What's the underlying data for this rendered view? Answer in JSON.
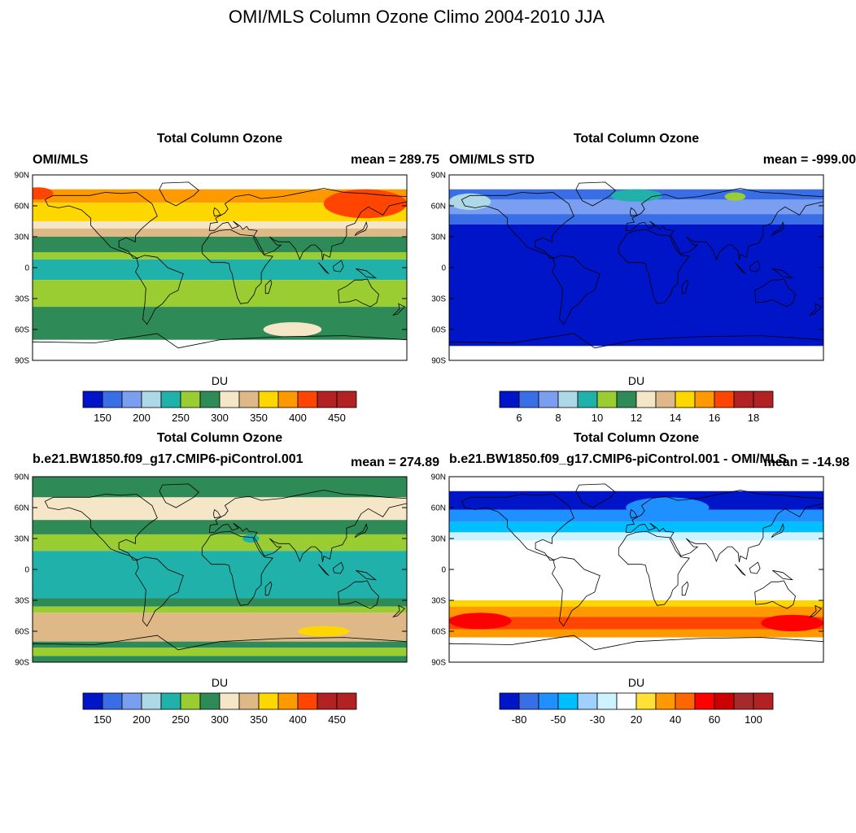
{
  "figure_title": "OMI/MLS Column Ozone Climo 2004-2010 JJA",
  "chart_data": [
    {
      "type": "heatmap",
      "title": "Total Column Ozone",
      "left_label": "OMI/MLS",
      "right_label": "mean = 289.75",
      "colorbar_title": "DU",
      "colorbar_ticks": [
        "150",
        "200",
        "250",
        "300",
        "350",
        "400",
        "450"
      ],
      "lat_ticks": [
        "90N",
        "60N",
        "30N",
        "0",
        "30S",
        "60S",
        "90S"
      ],
      "bands": [
        {
          "lat_from": 76,
          "lat_to": 63,
          "color": "#ff9900"
        },
        {
          "lat_from": 63,
          "lat_to": 45,
          "color": "#ffd700"
        },
        {
          "lat_from": 45,
          "lat_to": 38,
          "color": "#f5e6c8"
        },
        {
          "lat_from": 38,
          "lat_to": 30,
          "color": "#deb887"
        },
        {
          "lat_from": 30,
          "lat_to": 15,
          "color": "#2e8b57"
        },
        {
          "lat_from": 15,
          "lat_to": 8,
          "color": "#9acd32"
        },
        {
          "lat_from": 8,
          "lat_to": -12,
          "color": "#20b2aa"
        },
        {
          "lat_from": -12,
          "lat_to": -38,
          "color": "#9acd32"
        },
        {
          "lat_from": -38,
          "lat_to": -70,
          "color": "#2e8b57"
        }
      ],
      "blobs": [
        {
          "lon": 140,
          "lat": 62,
          "rlon": 40,
          "rlat": 14,
          "color": "#ff4500"
        },
        {
          "lon": -175,
          "lat": 72,
          "rlon": 15,
          "rlat": 6,
          "color": "#ff4500"
        },
        {
          "lon": 70,
          "lat": -60,
          "rlon": 28,
          "rlat": 7,
          "color": "#f5e6c8"
        }
      ]
    },
    {
      "type": "heatmap",
      "title": "Total Column Ozone",
      "left_label": "OMI/MLS STD",
      "right_label": "mean = -999.00",
      "colorbar_title": "DU",
      "colorbar_ticks": [
        "6",
        "8",
        "10",
        "12",
        "14",
        "16",
        "18"
      ],
      "lat_ticks": [
        "90N",
        "60N",
        "30N",
        "0",
        "30S",
        "60S",
        "90S"
      ],
      "bands": [
        {
          "lat_from": 76,
          "lat_to": 66,
          "color": "#3a6ee6"
        },
        {
          "lat_from": 66,
          "lat_to": 52,
          "color": "#7b9ff0"
        },
        {
          "lat_from": 52,
          "lat_to": 42,
          "color": "#3a6ee6"
        },
        {
          "lat_from": 42,
          "lat_to": -76,
          "color": "#0014c8"
        }
      ],
      "blobs": [
        {
          "lon": 0,
          "lat": 70,
          "rlon": 25,
          "rlat": 6,
          "color": "#20b2aa"
        },
        {
          "lon": 95,
          "lat": 69,
          "rlon": 10,
          "rlat": 4,
          "color": "#9acd32"
        },
        {
          "lon": -160,
          "lat": 64,
          "rlon": 20,
          "rlat": 8,
          "color": "#add8e6"
        }
      ]
    },
    {
      "type": "heatmap",
      "title": "Total Column Ozone",
      "left_label": "b.e21.BW1850.f09_g17.CMIP6-piControl.001",
      "right_label": "mean = 274.89",
      "colorbar_title": "DU",
      "colorbar_ticks": [
        "150",
        "200",
        "250",
        "300",
        "350",
        "400",
        "450"
      ],
      "lat_ticks": [
        "90N",
        "60N",
        "30N",
        "0",
        "30S",
        "60S",
        "90S"
      ],
      "bands": [
        {
          "lat_from": 90,
          "lat_to": 70,
          "color": "#2e8b57"
        },
        {
          "lat_from": 70,
          "lat_to": 48,
          "color": "#f5e6c8"
        },
        {
          "lat_from": 48,
          "lat_to": 34,
          "color": "#2e8b57"
        },
        {
          "lat_from": 34,
          "lat_to": 18,
          "color": "#9acd32"
        },
        {
          "lat_from": 18,
          "lat_to": -28,
          "color": "#20b2aa"
        },
        {
          "lat_from": -28,
          "lat_to": -36,
          "color": "#2e8b57"
        },
        {
          "lat_from": -36,
          "lat_to": -42,
          "color": "#9acd32"
        },
        {
          "lat_from": -42,
          "lat_to": -70,
          "color": "#deb887"
        },
        {
          "lat_from": -70,
          "lat_to": -76,
          "color": "#2e8b57"
        },
        {
          "lat_from": -76,
          "lat_to": -84,
          "color": "#9acd32"
        },
        {
          "lat_from": -84,
          "lat_to": -90,
          "color": "#2e8b57"
        }
      ],
      "blobs": [
        {
          "lon": 100,
          "lat": -60,
          "rlon": 25,
          "rlat": 5,
          "color": "#ffd700"
        },
        {
          "lon": 30,
          "lat": 30,
          "rlon": 8,
          "rlat": 4,
          "color": "#20b2aa"
        }
      ]
    },
    {
      "type": "heatmap",
      "title": "Total Column Ozone",
      "left_label": "b.e21.BW1850.f09_g17.CMIP6-piControl.001 - OMI/MLS",
      "right_label": "mean = -14.98",
      "colorbar_title": "DU",
      "colorbar_ticks": [
        "-80",
        "-50",
        "-30",
        "20",
        "40",
        "60",
        "100"
      ],
      "lat_ticks": [
        "90N",
        "60N",
        "30N",
        "0",
        "30S",
        "60S",
        "90S"
      ],
      "bands": [
        {
          "lat_from": 76,
          "lat_to": 58,
          "color": "#0014c8"
        },
        {
          "lat_from": 58,
          "lat_to": 46,
          "color": "#1e90ff"
        },
        {
          "lat_from": 46,
          "lat_to": 36,
          "color": "#00bfff"
        },
        {
          "lat_from": 36,
          "lat_to": 28,
          "color": "#cdf3ff"
        },
        {
          "lat_from": 28,
          "lat_to": -30,
          "color": "#ffffff"
        },
        {
          "lat_from": -30,
          "lat_to": -36,
          "color": "#ffd700"
        },
        {
          "lat_from": -36,
          "lat_to": -46,
          "color": "#ff9900"
        },
        {
          "lat_from": -46,
          "lat_to": -58,
          "color": "#ff4500"
        },
        {
          "lat_from": -58,
          "lat_to": -66,
          "color": "#ff9900"
        },
        {
          "lat_from": -66,
          "lat_to": -76,
          "color": "#ffffff"
        }
      ],
      "blobs": [
        {
          "lon": -150,
          "lat": -50,
          "rlon": 30,
          "rlat": 8,
          "color": "#ff0000"
        },
        {
          "lon": 150,
          "lat": -52,
          "rlon": 30,
          "rlat": 8,
          "color": "#ff0000"
        },
        {
          "lon": 30,
          "lat": 60,
          "rlon": 40,
          "rlat": 10,
          "color": "#1e90ff"
        }
      ]
    }
  ],
  "colorbars": {
    "absolute": [
      "#0014c8",
      "#3a6ee6",
      "#7b9ff0",
      "#add8e6",
      "#20b2aa",
      "#9acd32",
      "#2e8b57",
      "#f5e6c8",
      "#deb887",
      "#ffd700",
      "#ff9900",
      "#ff4500",
      "#b22222",
      "#b22222"
    ],
    "difference": [
      "#0014c8",
      "#3a6ee6",
      "#1e90ff",
      "#00bfff",
      "#9fd0ff",
      "#cdf3ff",
      "#ffffff",
      "#ffe135",
      "#ff9900",
      "#ff6600",
      "#ff0000",
      "#cc0000",
      "#a52a2a",
      "#b22222"
    ]
  }
}
